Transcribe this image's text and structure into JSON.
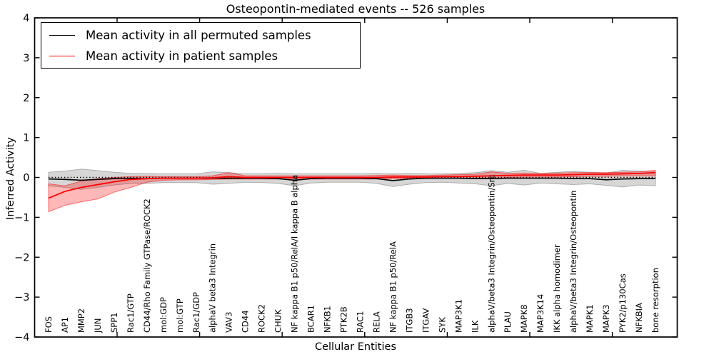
{
  "figure": {
    "title": "Osteopontin-mediated events -- 526 samples",
    "xlabel": "Cellular Entities",
    "ylabel": "Inferred Activity"
  },
  "legend": {
    "entries": [
      {
        "label": "Mean activity in all permuted samples",
        "color": "#000000"
      },
      {
        "label": "Mean activity in patient samples",
        "color": "#ff0000"
      }
    ],
    "position": "upper left"
  },
  "chart_data": {
    "type": "line",
    "title": "Osteopontin-mediated events -- 526 samples",
    "xlabel": "Cellular Entities",
    "ylabel": "Inferred Activity",
    "ylim": [
      -4,
      4
    ],
    "yticks": [
      4,
      3,
      2,
      1,
      0,
      -1,
      -2,
      -3,
      -4
    ],
    "ytick_labels": [
      "4",
      "3",
      "2",
      "1",
      "0",
      "−1",
      "−2",
      "−3",
      "−4"
    ],
    "grid": false,
    "zero_line": {
      "style": "dotted",
      "color": "#000000",
      "y": 0
    },
    "legend_position": "upper left",
    "categories": [
      "FOS",
      "AP1",
      "MMP2",
      "JUN",
      "SPP1",
      "Rac1/GTP",
      "CD44/Rho Family GTPase/ROCK2",
      "mol:GDP",
      "mol:GTP",
      "Rac1/GDP",
      "alphaV beta3 Integrin",
      "VAV3",
      "CD44",
      "ROCK2",
      "CHUK",
      "NF kappa B1 p50/RelA/I kappa B alpha",
      "BCAR1",
      "NFKB1",
      "PTK2B",
      "RAC1",
      "RELA",
      "NF kappa B1 p50/RelA",
      "ITGB3",
      "ITGAV",
      "SYK",
      "MAP3K1",
      "ILK",
      "alphaV/beta3 Integrin/Osteopontin/Src",
      "PLAU",
      "MAPK8",
      "MAP3K14",
      "IKK alpha homodimer",
      "alphaV/beta3 Integrin/Osteopontin",
      "MAPK1",
      "MAPK3",
      "PYK2/p130Cas",
      "NFKBIA",
      "bone resorption"
    ],
    "series": [
      {
        "name": "Mean activity in all permuted samples",
        "color": "#000000",
        "band_color": "#808080",
        "band_opacity": 0.32,
        "values": [
          -0.04,
          -0.05,
          -0.07,
          -0.05,
          -0.03,
          -0.02,
          -0.03,
          -0.02,
          -0.02,
          -0.02,
          -0.02,
          -0.02,
          -0.02,
          -0.02,
          -0.03,
          -0.07,
          -0.03,
          -0.02,
          -0.02,
          -0.02,
          -0.03,
          -0.08,
          -0.04,
          -0.02,
          -0.02,
          -0.02,
          -0.03,
          -0.03,
          -0.02,
          -0.02,
          -0.02,
          -0.02,
          -0.03,
          -0.03,
          -0.06,
          -0.04,
          -0.03,
          -0.03
        ],
        "band_upper": [
          0.13,
          0.16,
          0.21,
          0.17,
          0.13,
          0.1,
          0.1,
          0.09,
          0.09,
          0.09,
          0.14,
          0.12,
          0.09,
          0.09,
          0.1,
          0.09,
          0.09,
          0.09,
          0.09,
          0.09,
          0.1,
          0.09,
          0.1,
          0.09,
          0.09,
          0.1,
          0.12,
          0.17,
          0.13,
          0.18,
          0.1,
          0.13,
          0.15,
          0.13,
          0.11,
          0.18,
          0.16,
          0.14
        ],
        "band_lower": [
          -0.21,
          -0.25,
          -0.3,
          -0.25,
          -0.19,
          -0.15,
          -0.15,
          -0.13,
          -0.13,
          -0.13,
          -0.17,
          -0.15,
          -0.12,
          -0.13,
          -0.15,
          -0.21,
          -0.14,
          -0.12,
          -0.12,
          -0.12,
          -0.15,
          -0.23,
          -0.17,
          -0.13,
          -0.12,
          -0.14,
          -0.16,
          -0.21,
          -0.15,
          -0.19,
          -0.14,
          -0.16,
          -0.18,
          -0.16,
          -0.2,
          -0.24,
          -0.19,
          -0.21
        ]
      },
      {
        "name": "Mean activity in patient samples",
        "color": "#ff0000",
        "band_color": "#ff0000",
        "band_opacity": 0.28,
        "values": [
          -0.52,
          -0.35,
          -0.25,
          -0.18,
          -0.11,
          -0.05,
          -0.03,
          -0.02,
          -0.02,
          -0.02,
          -0.01,
          0.02,
          0.0,
          0.0,
          0.0,
          0.0,
          0.0,
          0.0,
          0.0,
          0.0,
          0.0,
          0.01,
          0.01,
          0.01,
          0.02,
          0.02,
          0.03,
          0.04,
          0.05,
          0.06,
          0.06,
          0.06,
          0.07,
          0.08,
          0.08,
          0.09,
          0.1,
          0.12
        ],
        "band_upper": [
          -0.16,
          -0.21,
          -0.09,
          -0.03,
          0.0,
          0.02,
          0.03,
          0.02,
          0.02,
          0.02,
          0.04,
          0.12,
          0.04,
          0.04,
          0.04,
          0.04,
          0.04,
          0.04,
          0.04,
          0.04,
          0.05,
          0.06,
          0.05,
          0.05,
          0.06,
          0.07,
          0.08,
          0.14,
          0.1,
          0.11,
          0.1,
          0.11,
          0.12,
          0.12,
          0.12,
          0.13,
          0.14,
          0.18
        ],
        "band_lower": [
          -0.86,
          -0.7,
          -0.61,
          -0.54,
          -0.37,
          -0.25,
          -0.12,
          -0.07,
          -0.06,
          -0.06,
          -0.05,
          -0.04,
          -0.04,
          -0.04,
          -0.04,
          -0.04,
          -0.04,
          -0.04,
          -0.04,
          -0.04,
          -0.04,
          -0.03,
          -0.03,
          -0.03,
          -0.02,
          -0.02,
          -0.02,
          -0.03,
          0.0,
          0.01,
          0.01,
          0.01,
          0.02,
          0.03,
          0.03,
          0.04,
          0.04,
          0.04
        ]
      }
    ]
  }
}
